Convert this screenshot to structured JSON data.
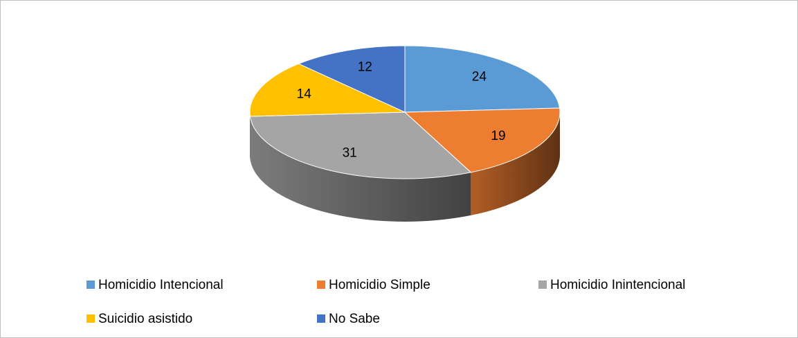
{
  "chart_data": {
    "type": "pie",
    "categories": [
      "Homicidio Intencional",
      "Homicidio Simple",
      "Homicidio Inintencional",
      "Suicidio asistido",
      "No Sabe"
    ],
    "values": [
      24,
      19,
      31,
      14,
      12
    ],
    "colors": [
      "#5b9bd5",
      "#ed7d31",
      "#a5a5a5",
      "#ffc000",
      "#4472c4"
    ],
    "legend": "bottom"
  }
}
